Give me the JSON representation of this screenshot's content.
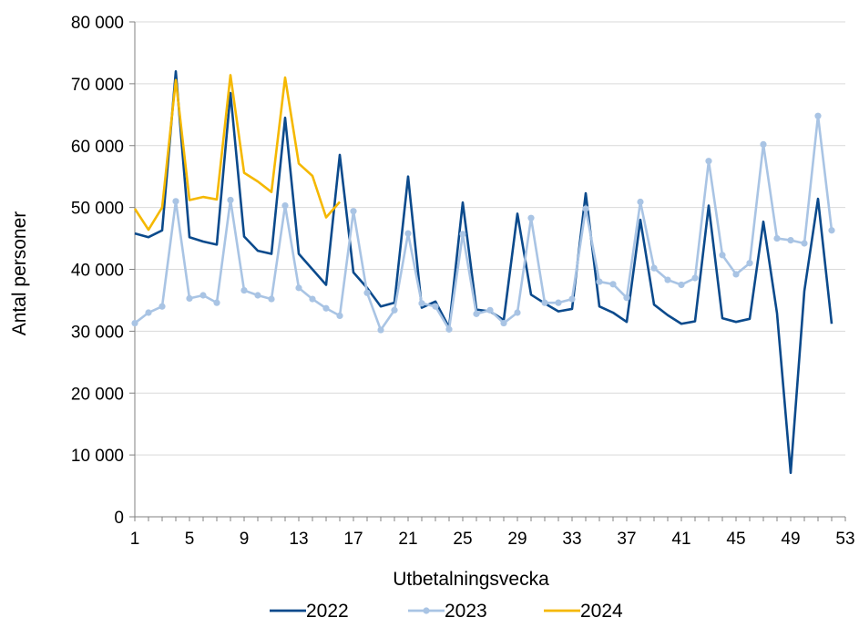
{
  "chart_data": {
    "type": "line",
    "xlabel": "Utbetalningsvecka",
    "ylabel": "Antal personer",
    "xlim": [
      1,
      53
    ],
    "ylim": [
      0,
      80000
    ],
    "x_ticks": [
      "1",
      "5",
      "9",
      "13",
      "17",
      "21",
      "25",
      "29",
      "33",
      "37",
      "41",
      "45",
      "49",
      "53"
    ],
    "y_ticks": [
      "0",
      "10 000",
      "20 000",
      "30 000",
      "40 000",
      "50 000",
      "60 000",
      "70 000",
      "80 000"
    ],
    "grid": "horizontal",
    "legend": "bottom",
    "series": [
      {
        "name": "2022",
        "color": "#0B4A8C",
        "markers": false,
        "values": [
          45800,
          45200,
          46300,
          72000,
          45200,
          44500,
          44000,
          68500,
          45300,
          43000,
          42500,
          64500,
          42500,
          40000,
          37500,
          58500,
          39500,
          37000,
          34000,
          34600,
          55000,
          33800,
          34800,
          30600,
          50800,
          33500,
          33200,
          31800,
          49000,
          35900,
          34500,
          33200,
          33600,
          52300,
          34000,
          33000,
          31500,
          48000,
          34300,
          32600,
          31200,
          31600,
          50300,
          32100,
          31500,
          32000,
          47700,
          32900,
          7100,
          36500,
          51400,
          31200
        ]
      },
      {
        "name": "2023",
        "color": "#A9C4E4",
        "markers": true,
        "values": [
          31300,
          33000,
          34000,
          51000,
          35300,
          35800,
          34600,
          51200,
          36600,
          35800,
          35200,
          50300,
          37000,
          35200,
          33700,
          32500,
          49400,
          36200,
          30200,
          33400,
          45800,
          34500,
          34000,
          30300,
          45700,
          32800,
          33400,
          31300,
          33000,
          48300,
          34600,
          34600,
          35200,
          49800,
          38000,
          37600,
          35400,
          50900,
          40200,
          38300,
          37500,
          38600,
          57500,
          42300,
          39200,
          41000,
          60200,
          45000,
          44700,
          44200,
          64800,
          46300
        ]
      },
      {
        "name": "2024",
        "color": "#F5B800",
        "markers": false,
        "values": [
          49800,
          46400,
          50000,
          70600,
          51200,
          51700,
          51300,
          71400,
          55600,
          54200,
          52500,
          71000,
          57100,
          55100,
          48400,
          50900
        ]
      }
    ]
  }
}
